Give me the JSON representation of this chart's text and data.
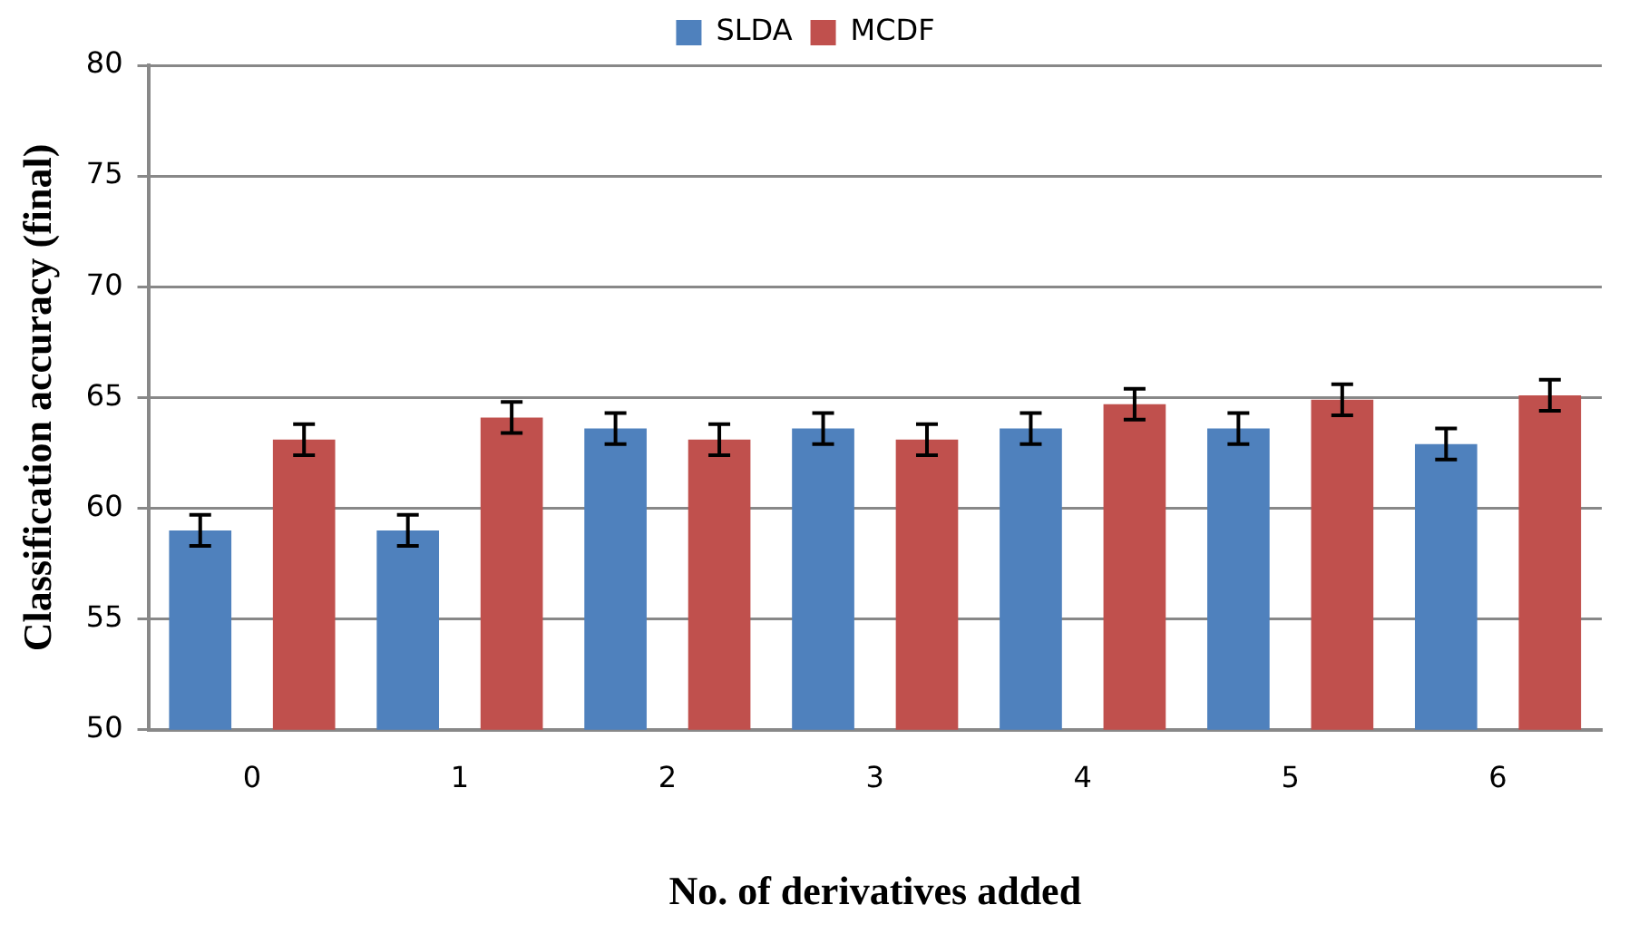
{
  "chart_data": {
    "type": "bar",
    "xlabel": "No. of derivatives added",
    "ylabel": "Classification accuracy (final)",
    "categories": [
      "0",
      "1",
      "2",
      "3",
      "4",
      "5",
      "6"
    ],
    "series": [
      {
        "name": "SLDA",
        "color": "#4f81bd",
        "values": [
          59.0,
          59.0,
          63.6,
          63.6,
          63.6,
          63.6,
          62.9
        ],
        "errors": [
          0.7,
          0.7,
          0.7,
          0.7,
          0.7,
          0.7,
          0.7
        ]
      },
      {
        "name": "MCDF",
        "color": "#c0504d",
        "values": [
          63.1,
          64.1,
          63.1,
          63.1,
          64.7,
          64.9,
          65.1
        ],
        "errors": [
          0.7,
          0.7,
          0.7,
          0.7,
          0.7,
          0.7,
          0.7
        ]
      }
    ],
    "ylim": [
      50,
      80
    ],
    "yticks": [
      50,
      55,
      60,
      65,
      70,
      75,
      80
    ],
    "grid": "y",
    "legend": "top"
  }
}
